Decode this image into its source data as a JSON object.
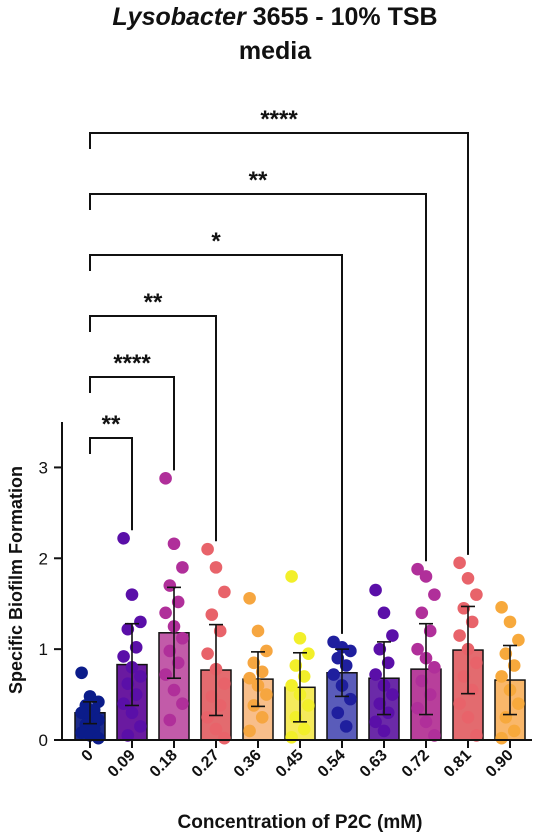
{
  "chart_data": {
    "type": "bar",
    "title_italic": "Lysobacter",
    "title_rest": "3655 - 10% TSB",
    "title_line2": "media",
    "xlabel": "Concentration of P2C (mM)",
    "ylabel": "Specific Biofilm Formation",
    "ylim": [
      0,
      3.5
    ],
    "yticks": [
      "0",
      "1",
      "2",
      "3"
    ],
    "categories": [
      "0",
      "0.09",
      "0.18",
      "0.27",
      "0.36",
      "0.45",
      "0.54",
      "0.63",
      "0.72",
      "0.81",
      "0.90"
    ],
    "values": [
      0.3,
      0.83,
      1.18,
      0.77,
      0.67,
      0.58,
      0.74,
      0.68,
      0.78,
      0.99,
      0.66
    ],
    "error": [
      0.12,
      0.45,
      0.5,
      0.5,
      0.3,
      0.38,
      0.26,
      0.4,
      0.5,
      0.48,
      0.38
    ],
    "bar_colors": [
      "#1c2b8c",
      "#6a1aa0",
      "#c25ba9",
      "#e36b6f",
      "#f8be8a",
      "#f5ea5c",
      "#5a5cba",
      "#6b2aa8",
      "#b83f9b",
      "#e36b6f",
      "#f9b76a"
    ],
    "point_colors": [
      "#0b1c8a",
      "#5a0fa8",
      "#b02f9a",
      "#e8636a",
      "#f6a640",
      "#f2ef2a",
      "#1f1f9e",
      "#5a0fa8",
      "#b02f9a",
      "#e8636a",
      "#f7a93c"
    ],
    "points": [
      [
        0.74,
        0.48,
        0.42,
        0.38,
        0.33,
        0.3,
        0.26,
        0.22,
        0.17,
        0.12,
        0.08,
        0.05,
        0.02
      ],
      [
        2.22,
        1.6,
        1.3,
        1.22,
        1.02,
        0.92,
        0.8,
        0.7,
        0.62,
        0.5,
        0.4,
        0.3,
        0.15,
        0.05
      ],
      [
        2.88,
        2.16,
        1.9,
        1.7,
        1.52,
        1.4,
        1.25,
        1.12,
        0.98,
        0.85,
        0.72,
        0.55,
        0.4,
        0.22
      ],
      [
        2.1,
        1.9,
        1.63,
        1.38,
        1.2,
        0.95,
        0.78,
        0.62,
        0.48,
        0.38,
        0.25,
        0.12,
        0.02
      ],
      [
        1.56,
        1.2,
        0.98,
        0.85,
        0.75,
        0.68,
        0.6,
        0.5,
        0.38,
        0.25,
        0.1
      ],
      [
        1.8,
        1.12,
        0.95,
        0.82,
        0.7,
        0.6,
        0.5,
        0.38,
        0.25,
        0.12,
        0.03
      ],
      [
        1.08,
        1.02,
        0.98,
        0.9,
        0.82,
        0.72,
        0.6,
        0.45,
        0.3,
        0.15
      ],
      [
        1.65,
        1.4,
        1.15,
        1.0,
        0.85,
        0.72,
        0.6,
        0.5,
        0.4,
        0.3,
        0.2,
        0.1
      ],
      [
        1.88,
        1.8,
        1.6,
        1.4,
        1.2,
        1.0,
        0.9,
        0.8,
        0.65,
        0.5,
        0.35,
        0.2,
        0.05
      ],
      [
        1.95,
        1.78,
        1.6,
        1.45,
        1.3,
        1.15,
        1.0,
        0.85,
        0.7,
        0.55,
        0.4,
        0.25,
        0.05
      ],
      [
        1.46,
        1.3,
        1.1,
        0.95,
        0.82,
        0.7,
        0.55,
        0.4,
        0.25,
        0.1,
        0.02
      ]
    ],
    "comparisons": [
      {
        "from": "0",
        "to": "0.09",
        "label": "**"
      },
      {
        "from": "0",
        "to": "0.18",
        "label": "****"
      },
      {
        "from": "0",
        "to": "0.27",
        "label": "**"
      },
      {
        "from": "0",
        "to": "0.54",
        "label": "*"
      },
      {
        "from": "0",
        "to": "0.72",
        "label": "**"
      },
      {
        "from": "0",
        "to": "0.81",
        "label": "****"
      }
    ],
    "grid": false
  }
}
